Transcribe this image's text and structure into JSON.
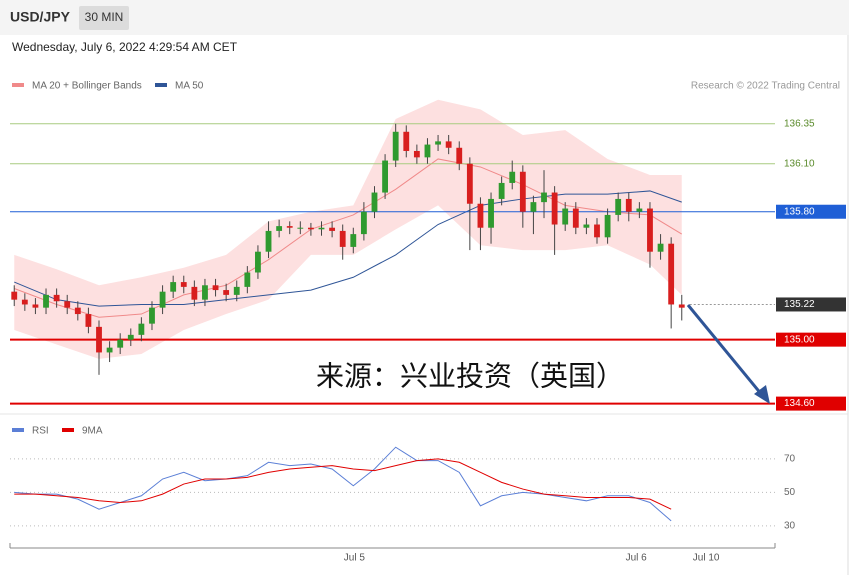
{
  "chart_data": {
    "type": "candlestick",
    "title": "USD/JPY",
    "interval": "30 MIN",
    "subtitle": "Wednesday, July 6, 2022 4:29:54 AM CET",
    "credit": "Research © 2022 Trading Central",
    "annotation": "来源：兴业投资（英国）",
    "up_color": "#2f9a2f",
    "down_color": "#d81e1e",
    "xlim": [
      -0.4,
      71.8
    ],
    "xticks": [
      {
        "value": 32.1,
        "label": "Jul 5"
      },
      {
        "value": 58.7,
        "label": "Jul 6"
      },
      {
        "value": 65.3,
        "label": "Jul 10"
      }
    ],
    "ylim": [
      134.56,
      136.53
    ],
    "candles": [
      [
        135.3,
        135.34,
        135.21,
        135.25
      ],
      [
        135.25,
        135.29,
        135.18,
        135.22
      ],
      [
        135.22,
        135.26,
        135.16,
        135.2
      ],
      [
        135.2,
        135.32,
        135.16,
        135.28
      ],
      [
        135.28,
        135.32,
        135.2,
        135.24
      ],
      [
        135.24,
        135.28,
        135.16,
        135.2
      ],
      [
        135.2,
        135.24,
        135.12,
        135.16
      ],
      [
        135.16,
        135.2,
        135.04,
        135.08
      ],
      [
        135.08,
        135.12,
        134.78,
        134.92
      ],
      [
        134.92,
        134.99,
        134.86,
        134.95
      ],
      [
        134.95,
        135.04,
        134.91,
        135.0
      ],
      [
        135.0,
        135.07,
        134.96,
        135.03
      ],
      [
        135.03,
        135.14,
        134.99,
        135.1
      ],
      [
        135.1,
        135.24,
        135.06,
        135.2
      ],
      [
        135.2,
        135.34,
        135.16,
        135.3
      ],
      [
        135.3,
        135.4,
        135.26,
        135.36
      ],
      [
        135.36,
        135.4,
        135.29,
        135.33
      ],
      [
        135.33,
        135.37,
        135.21,
        135.25
      ],
      [
        135.25,
        135.38,
        135.21,
        135.34
      ],
      [
        135.34,
        135.38,
        135.27,
        135.31
      ],
      [
        135.31,
        135.35,
        135.24,
        135.28
      ],
      [
        135.28,
        135.37,
        135.24,
        135.33
      ],
      [
        135.33,
        135.46,
        135.29,
        135.42
      ],
      [
        135.42,
        135.59,
        135.38,
        135.55
      ],
      [
        135.55,
        135.74,
        135.51,
        135.68
      ],
      [
        135.68,
        135.75,
        135.64,
        135.71
      ],
      [
        135.71,
        135.74,
        135.66,
        135.7
      ],
      [
        135.7,
        135.74,
        135.66,
        135.7
      ],
      [
        135.7,
        135.73,
        135.65,
        135.69
      ],
      [
        135.69,
        135.74,
        135.65,
        135.7
      ],
      [
        135.7,
        135.74,
        135.64,
        135.68
      ],
      [
        135.68,
        135.72,
        135.5,
        135.58
      ],
      [
        135.58,
        135.7,
        135.54,
        135.66
      ],
      [
        135.66,
        135.86,
        135.62,
        135.8
      ],
      [
        135.8,
        135.96,
        135.76,
        135.92
      ],
      [
        135.92,
        136.16,
        135.88,
        136.12
      ],
      [
        136.12,
        136.35,
        136.08,
        136.3
      ],
      [
        136.3,
        136.34,
        136.14,
        136.18
      ],
      [
        136.18,
        136.22,
        136.1,
        136.14
      ],
      [
        136.14,
        136.26,
        136.1,
        136.22
      ],
      [
        136.22,
        136.28,
        136.18,
        136.24
      ],
      [
        136.24,
        136.28,
        136.16,
        136.2
      ],
      [
        136.2,
        136.24,
        136.06,
        136.1
      ],
      [
        136.1,
        136.14,
        135.56,
        135.85
      ],
      [
        135.85,
        135.89,
        135.56,
        135.7
      ],
      [
        135.7,
        135.92,
        135.6,
        135.88
      ],
      [
        135.88,
        136.02,
        135.84,
        135.98
      ],
      [
        135.98,
        136.12,
        135.94,
        136.05
      ],
      [
        136.05,
        136.09,
        135.7,
        135.8
      ],
      [
        135.8,
        135.9,
        135.66,
        135.86
      ],
      [
        135.86,
        136.06,
        135.76,
        135.92
      ],
      [
        135.92,
        135.96,
        135.53,
        135.72
      ],
      [
        135.72,
        135.86,
        135.68,
        135.82
      ],
      [
        135.82,
        135.86,
        135.66,
        135.7
      ],
      [
        135.7,
        135.76,
        135.66,
        135.72
      ],
      [
        135.72,
        135.76,
        135.6,
        135.64
      ],
      [
        135.64,
        135.82,
        135.6,
        135.78
      ],
      [
        135.78,
        135.92,
        135.74,
        135.88
      ],
      [
        135.88,
        135.92,
        135.74,
        135.8
      ],
      [
        135.8,
        135.86,
        135.76,
        135.82
      ],
      [
        135.82,
        135.86,
        135.45,
        135.55
      ],
      [
        135.55,
        135.66,
        135.5,
        135.6
      ],
      [
        135.6,
        135.64,
        135.07,
        135.22
      ],
      [
        135.22,
        135.28,
        135.12,
        135.2
      ]
    ],
    "overlays": [
      {
        "name": "MA 20 + Bollinger Bands",
        "color": "#f08a8a",
        "band_color": "#fde0e0",
        "x": [
          0,
          4,
          8,
          12,
          16,
          20,
          24,
          28,
          32,
          36,
          40,
          44,
          48,
          52,
          56,
          60,
          63
        ],
        "values": [
          135.32,
          135.22,
          135.14,
          135.16,
          135.28,
          135.34,
          135.5,
          135.69,
          135.78,
          135.94,
          136.13,
          136.08,
          135.97,
          135.84,
          135.8,
          135.78,
          135.66
        ],
        "upper": [
          135.53,
          135.44,
          135.34,
          135.39,
          135.45,
          135.53,
          135.74,
          135.8,
          135.84,
          136.38,
          136.5,
          136.44,
          136.28,
          136.31,
          136.13,
          136.03,
          136.03
        ],
        "lower": [
          135.06,
          134.97,
          134.88,
          134.91,
          135.06,
          135.16,
          135.25,
          135.53,
          135.53,
          135.69,
          135.84,
          135.59,
          135.56,
          135.56,
          135.59,
          135.47,
          135.28
        ]
      },
      {
        "name": "MA 50",
        "color": "#2f5597",
        "x": [
          0,
          4,
          8,
          12,
          16,
          20,
          24,
          28,
          32,
          36,
          40,
          44,
          48,
          52,
          56,
          60,
          63
        ],
        "values": [
          135.36,
          135.25,
          135.21,
          135.22,
          135.22,
          135.25,
          135.28,
          135.31,
          135.39,
          135.53,
          135.72,
          135.84,
          135.88,
          135.91,
          135.91,
          135.93,
          135.86
        ]
      }
    ],
    "levels": [
      {
        "value": 136.35,
        "color": "#a8cc80",
        "text_color": "#5a8a2a",
        "style": "text",
        "line": "solid"
      },
      {
        "value": 136.1,
        "label": "136.10",
        "color": "#a8cc80",
        "text_color": "#5a8a2a",
        "style": "text",
        "line": "solid"
      },
      {
        "value": 135.8,
        "label": "135.80",
        "color": "#1f5fd6",
        "text_color": "#ffffff",
        "style": "box",
        "line": "solid"
      },
      {
        "value": 135.22,
        "color": "#333333",
        "text_color": "#ffffff",
        "style": "box",
        "line": "dotted"
      },
      {
        "value": 135,
        "label": "135.00",
        "color": "#e00000",
        "text_color": "#ffffff",
        "style": "box",
        "line": "solid"
      },
      {
        "value": 134.6,
        "label": "134.60",
        "color": "#e00000",
        "text_color": "#ffffff",
        "style": "box",
        "line": "solid"
      }
    ],
    "rsi": {
      "ylim": [
        21.6,
        81.3
      ],
      "yticks": [
        30,
        50,
        70
      ],
      "series": [
        {
          "name": "RSI",
          "color": "#5b7fd6",
          "x": [
            0,
            2,
            4,
            6,
            8,
            10,
            12,
            14,
            16,
            18,
            20,
            22,
            24,
            26,
            28,
            30,
            32,
            34,
            36,
            38,
            40,
            42,
            44,
            46,
            48,
            50,
            52,
            54,
            56,
            58,
            60,
            62
          ],
          "values": [
            50,
            49,
            49,
            46,
            40,
            44,
            48,
            58,
            62,
            57,
            58,
            60,
            68,
            66,
            67,
            64,
            54,
            64,
            77,
            69,
            69,
            62,
            42,
            48,
            50,
            49,
            47,
            45,
            48,
            48,
            44,
            33
          ]
        },
        {
          "name": "9MA",
          "color": "#e00000",
          "x": [
            0,
            2,
            4,
            6,
            8,
            10,
            12,
            14,
            16,
            18,
            20,
            22,
            24,
            26,
            28,
            30,
            32,
            34,
            36,
            38,
            40,
            42,
            44,
            46,
            48,
            50,
            52,
            54,
            56,
            58,
            60,
            62
          ],
          "values": [
            49,
            49,
            48,
            47,
            45,
            44,
            45,
            49,
            55,
            58,
            58,
            59,
            62,
            64,
            65,
            66,
            64,
            63,
            66,
            69,
            70,
            68,
            62,
            56,
            52,
            49,
            48,
            47,
            47,
            47,
            46,
            40
          ]
        }
      ]
    }
  }
}
